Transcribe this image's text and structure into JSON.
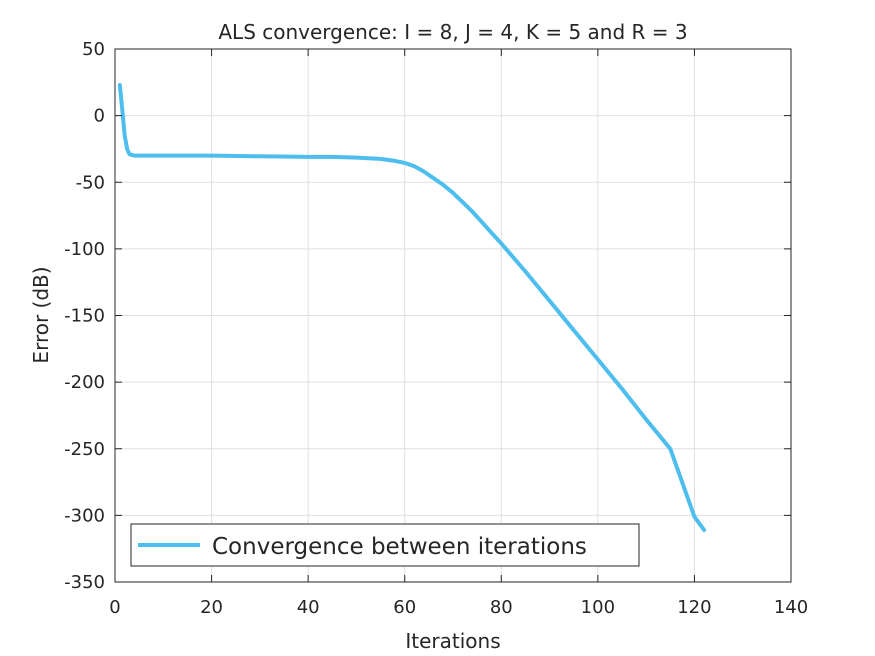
{
  "chart_data": {
    "type": "line",
    "title": "ALS convergence: I = 8, J = 4, K = 5 and R = 3",
    "xlabel": "Iterations",
    "ylabel": "Error (dB)",
    "xlim": [
      0,
      140
    ],
    "ylim": [
      -350,
      50
    ],
    "xticks": [
      0,
      20,
      40,
      60,
      80,
      100,
      120,
      140
    ],
    "yticks": [
      50,
      0,
      -50,
      -100,
      -150,
      -200,
      -250,
      -300,
      -350
    ],
    "xtick_labels": [
      "0",
      "20",
      "40",
      "60",
      "80",
      "100",
      "120",
      "140"
    ],
    "ytick_labels": [
      "50",
      "0",
      "-50",
      "-100",
      "-150",
      "-200",
      "-250",
      "-300",
      "-350"
    ],
    "grid": true,
    "legend_position": "bottom-left",
    "series": [
      {
        "name": "Convergence between iterations",
        "color": "#4DBEEE",
        "x": [
          1,
          1.5,
          2,
          2.5,
          3,
          4,
          10,
          20,
          30,
          40,
          45,
          50,
          55,
          58,
          60,
          62,
          64,
          66,
          68,
          70,
          72,
          74,
          76,
          78,
          80,
          85,
          90,
          95,
          100,
          105,
          110,
          115,
          120,
          122
        ],
        "y": [
          23,
          5,
          -15,
          -25,
          -29,
          -30,
          -30,
          -30,
          -30.5,
          -31,
          -31,
          -31.5,
          -32.5,
          -34,
          -35.5,
          -38,
          -42,
          -47,
          -52,
          -58,
          -65,
          -72,
          -80,
          -88,
          -96,
          -117,
          -139,
          -161,
          -183,
          -205,
          -228,
          -250,
          -301,
          -311
        ]
      }
    ]
  }
}
